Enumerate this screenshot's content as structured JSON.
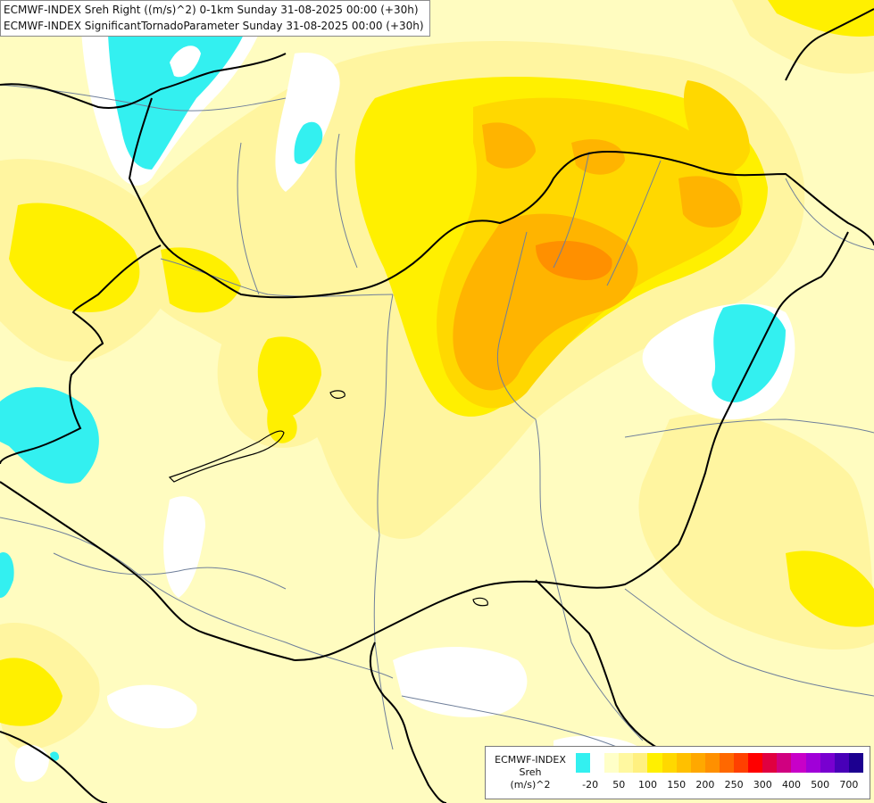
{
  "title": {
    "line1": "ECMWF-INDEX Sreh Right ((m/s)^2) 0-1km Sunday 31-08-2025 00:00 (+30h)",
    "line2": "ECMWF-INDEX SignificantTornadoParameter Sunday 31-08-2025 00:00 (+30h)"
  },
  "legend": {
    "model": "ECMWF-INDEX",
    "variable": "Sreh",
    "unit": "(m/s)^2",
    "swatches": [
      "#33f0f0",
      "#ffffff",
      "#ffffc8",
      "#fff8a0",
      "#fff080",
      "#fff000",
      "#ffd800",
      "#ffc000",
      "#ffa800",
      "#ff9000",
      "#ff6800",
      "#ff4000",
      "#ff0000",
      "#e00040",
      "#d00080",
      "#c800c8",
      "#a000d8",
      "#7800d0",
      "#4800b8",
      "#1c0090"
    ],
    "ticks": [
      "-20",
      "50",
      "100",
      "150",
      "200",
      "250",
      "300",
      "400",
      "500",
      "700"
    ]
  },
  "map_colors": {
    "background": "#fffcc0",
    "light_yellow": "#fff5a0",
    "yellow": "#fff000",
    "gold": "#ffd800",
    "orange": "#ffb400",
    "dark_orange": "#ff9000",
    "cyan": "#33f0f0",
    "white": "#ffffff",
    "border_line": "#000000",
    "river_line": "#6f7f9a"
  }
}
